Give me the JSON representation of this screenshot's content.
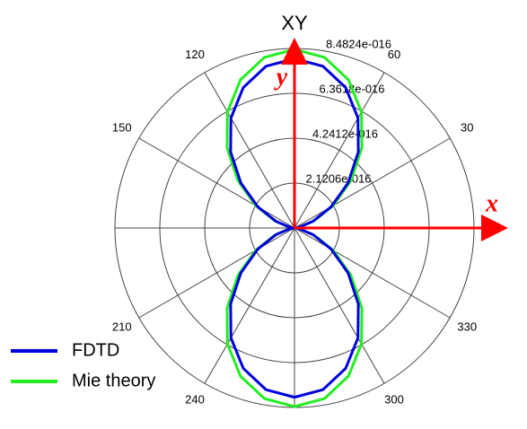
{
  "chart_data": {
    "type": "polar",
    "title": "XY",
    "annotations": {
      "x_axis": "x",
      "y_axis": "y"
    },
    "x": [
      0,
      10,
      20,
      30,
      40,
      50,
      60,
      70,
      80,
      90,
      100,
      110,
      120,
      130,
      140,
      150,
      160,
      170,
      180,
      190,
      200,
      210,
      220,
      230,
      240,
      250,
      260,
      270,
      280,
      290,
      300,
      310,
      320,
      330,
      340,
      350,
      360
    ],
    "series": [
      {
        "name": "FDTD",
        "color": "#0000dd",
        "values": [
          0,
          2.42e-17,
          9.36e-17,
          2e-16,
          3.306e-16,
          4.694e-16,
          6e-16,
          7.064e-16,
          7.758e-16,
          8e-16,
          7.758e-16,
          7.064e-16,
          6e-16,
          4.694e-16,
          3.306e-16,
          2e-16,
          9.36e-17,
          2.42e-17,
          0,
          2.42e-17,
          9.36e-17,
          2e-16,
          3.306e-16,
          4.694e-16,
          6e-16,
          7.064e-16,
          7.758e-16,
          8e-16,
          7.758e-16,
          7.064e-16,
          6e-16,
          4.694e-16,
          3.306e-16,
          2e-16,
          9.36e-17,
          2.42e-17,
          0
        ]
      },
      {
        "name": "Mie theory",
        "color": "#22ee22",
        "values": [
          0,
          2.55e-17,
          9.87e-17,
          2.11e-16,
          3.487e-16,
          4.953e-16,
          6.33e-16,
          7.453e-16,
          8.185e-16,
          8.44e-16,
          8.185e-16,
          7.453e-16,
          6.33e-16,
          4.953e-16,
          3.487e-16,
          2.11e-16,
          9.87e-17,
          2.55e-17,
          0,
          2.55e-17,
          9.87e-17,
          2.11e-16,
          3.487e-16,
          4.953e-16,
          6.33e-16,
          7.453e-16,
          8.185e-16,
          8.44e-16,
          8.185e-16,
          7.453e-16,
          6.33e-16,
          4.953e-16,
          3.487e-16,
          2.11e-16,
          9.87e-17,
          2.55e-17,
          0
        ]
      }
    ],
    "rlim": [
      0,
      8.4824e-16
    ],
    "rticks": [
      {
        "value": 2.1206e-16,
        "label": "2.1206e-016"
      },
      {
        "value": 4.2412e-16,
        "label": "4.2412e-016"
      },
      {
        "value": 6.3618e-16,
        "label": "6.3618e-016"
      },
      {
        "value": 8.4824e-16,
        "label": "8.4824e-016"
      }
    ],
    "thetaticks": [
      {
        "value": 0,
        "label": null
      },
      30,
      60,
      {
        "value": 90,
        "label": null
      },
      120,
      150,
      {
        "value": 180,
        "label": null
      },
      210,
      240,
      {
        "value": 270,
        "label": null
      },
      300,
      330
    ],
    "legend": "lower left"
  }
}
